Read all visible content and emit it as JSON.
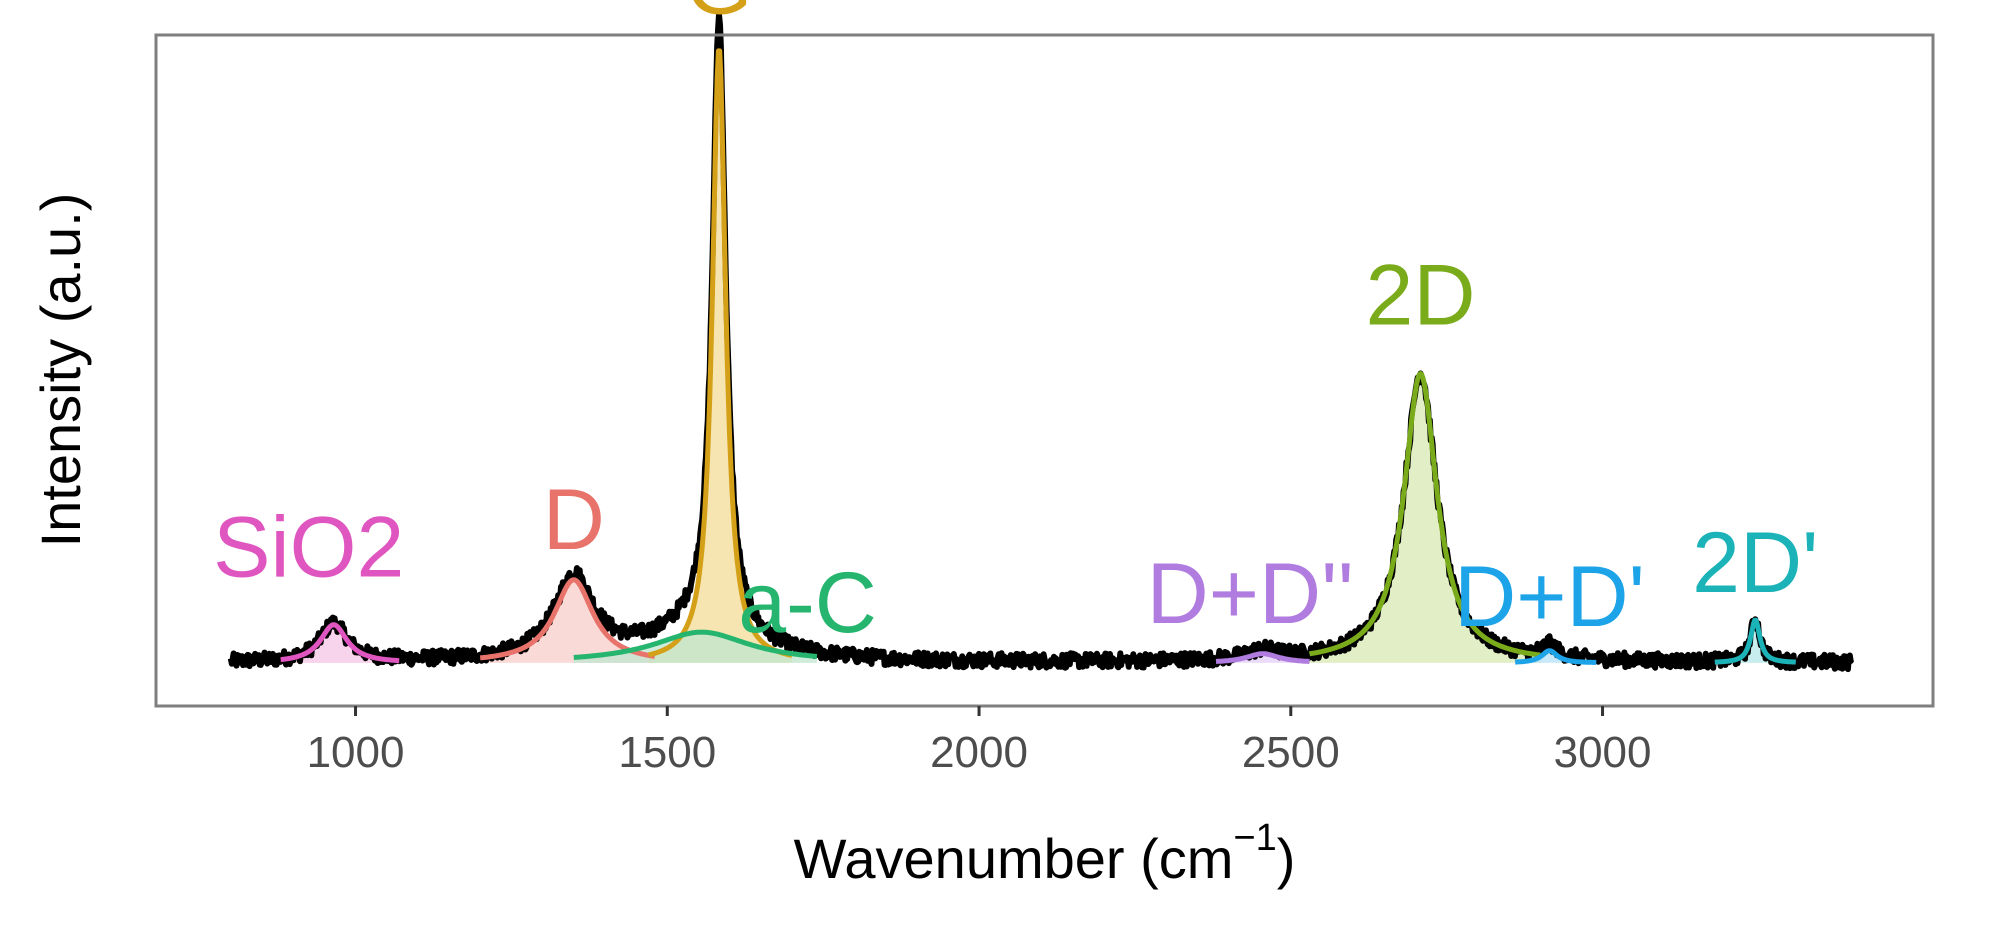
{
  "chart_data": {
    "type": "line",
    "title": "",
    "xlabel": "Wavenumber (cm",
    "xlabel_sup": "−1",
    "xlabel_end": ")",
    "ylabel": "Intensity (a.u.)",
    "xlim": [
      680,
      3530
    ],
    "ylim": [
      -0.07,
      1.02
    ],
    "x_ticks": [
      1000,
      1500,
      2000,
      2500,
      3000
    ],
    "x_tick_labels": [
      "1000",
      "1500",
      "2000",
      "2500",
      "3000"
    ],
    "y_ticks_shown": false,
    "grid": false,
    "legend": "none",
    "spectrum": {
      "x_range": [
        800,
        3400
      ],
      "color": "#000000",
      "baseline": 0.0,
      "noise_amplitude": 0.012
    },
    "peaks": [
      {
        "label": "SiO2",
        "center": 965,
        "width": 26,
        "height": 0.062,
        "range": [
          880,
          1070
        ],
        "color": "#e056c0",
        "fill": "#f5c4e6",
        "label_x": 925,
        "label_y": 0.14
      },
      {
        "label": "D",
        "center": 1350,
        "width": 38,
        "height": 0.135,
        "range": [
          1200,
          1480
        ],
        "color": "#e8736b",
        "fill": "#f8cdca",
        "label_x": 1350,
        "label_y": 0.185
      },
      {
        "label": "G",
        "center": 1583,
        "width": 13,
        "height": 1.0,
        "range": [
          1470,
          1700
        ],
        "color": "#d4a017",
        "fill": "#f3dc95",
        "label_x": 1583,
        "label_y": 1.055
      },
      {
        "label": "a-C",
        "center": 1555,
        "width": 95,
        "height": 0.05,
        "range": [
          1350,
          1740
        ],
        "color": "#26b56e",
        "fill": "#bfe6cf",
        "label_x": 1725,
        "label_y": 0.05
      },
      {
        "label": "D+D''",
        "center": 2455,
        "width": 32,
        "height": 0.015,
        "range": [
          2380,
          2530
        ],
        "color": "#b07ce0",
        "fill": "#e3d0f5",
        "label_x": 2435,
        "label_y": 0.065
      },
      {
        "label": "2D",
        "center": 2708,
        "width": 32,
        "height": 0.47,
        "range": [
          2530,
          2900
        ],
        "color": "#7aab1a",
        "fill": "#d7e8b3",
        "label_x": 2708,
        "label_y": 0.55
      },
      {
        "label": "D+D'",
        "center": 2915,
        "width": 15,
        "height": 0.02,
        "range": [
          2860,
          2990
        ],
        "color": "#1ca3e8",
        "fill": "#b6e1f7",
        "label_x": 2915,
        "label_y": 0.06
      },
      {
        "label": "2D'",
        "center": 3245,
        "width": 9,
        "height": 0.07,
        "range": [
          3180,
          3310
        ],
        "color": "#1bb3b8",
        "fill": "#b4e7e8",
        "label_x": 3245,
        "label_y": 0.115
      }
    ]
  }
}
